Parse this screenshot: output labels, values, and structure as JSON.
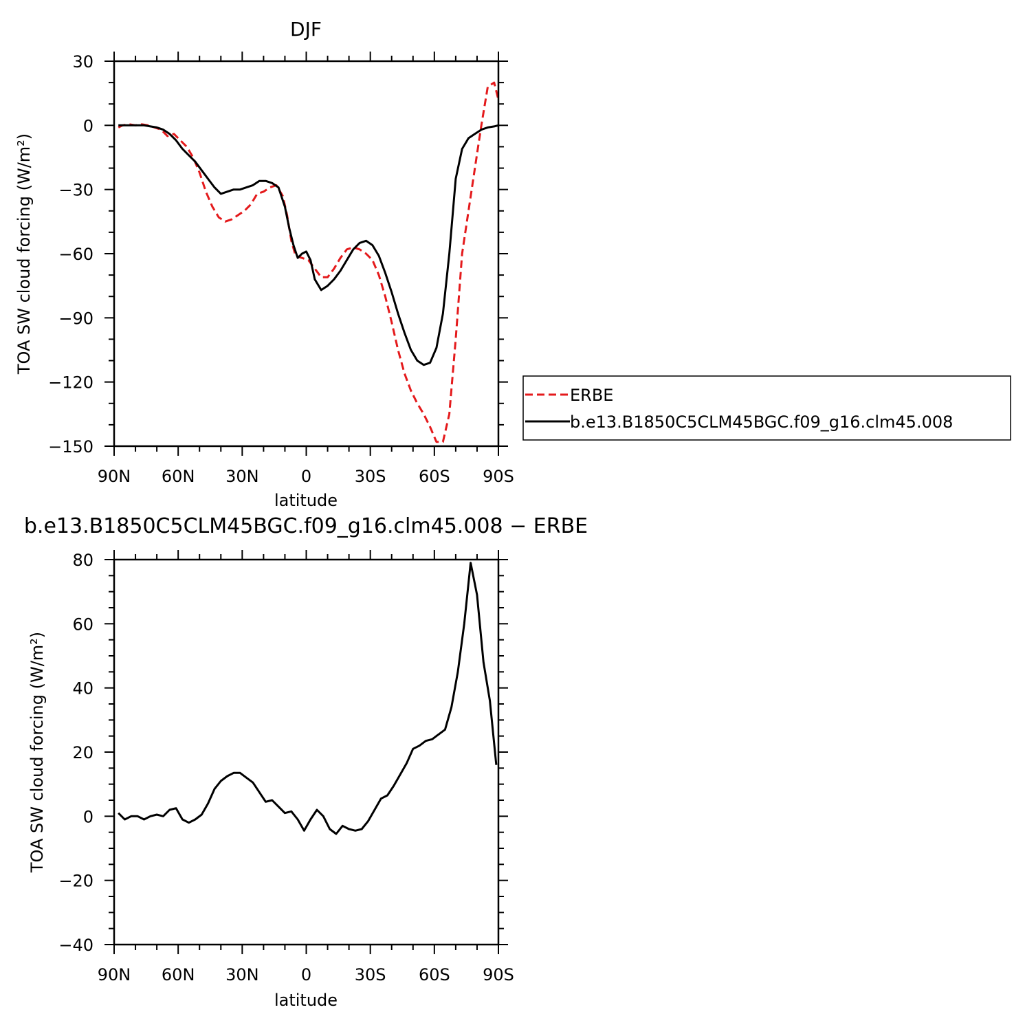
{
  "chart_data": [
    {
      "type": "line",
      "title": "DJF",
      "xlabel": "latitude",
      "ylabel": "TOA SW cloud forcing (W/m²)",
      "xlim": [
        90,
        -90
      ],
      "ylim": [
        -150,
        30
      ],
      "x_ticks": [
        {
          "value": 90,
          "label": "90N"
        },
        {
          "value": 60,
          "label": "60N"
        },
        {
          "value": 30,
          "label": "30N"
        },
        {
          "value": 0,
          "label": "0"
        },
        {
          "value": -30,
          "label": "30S"
        },
        {
          "value": -60,
          "label": "60S"
        },
        {
          "value": -90,
          "label": "90S"
        }
      ],
      "y_ticks": [
        30,
        0,
        -30,
        -60,
        -90,
        -120,
        -150
      ],
      "legend": {
        "position": "right",
        "entries": [
          {
            "name": "ERBE",
            "color": "#e41a1c",
            "dash": "dashed"
          },
          {
            "name": "b.e13.B1850C5CLM45BGC.f09_g16.clm45.008",
            "color": "#000000",
            "dash": "solid"
          }
        ]
      },
      "series": [
        {
          "name": "ERBE",
          "color": "#e41a1c",
          "dash": "dashed",
          "points": [
            [
              88,
              -1
            ],
            [
              86,
              0
            ],
            [
              83,
              0.5
            ],
            [
              80,
              0
            ],
            [
              77,
              0.5
            ],
            [
              74,
              0
            ],
            [
              71,
              -1
            ],
            [
              68,
              -2
            ],
            [
              65,
              -5
            ],
            [
              62,
              -4
            ],
            [
              59,
              -7
            ],
            [
              56,
              -10
            ],
            [
              53,
              -15
            ],
            [
              50,
              -22
            ],
            [
              47,
              -31
            ],
            [
              44,
              -38
            ],
            [
              41,
              -43
            ],
            [
              38,
              -45
            ],
            [
              35,
              -44
            ],
            [
              32,
              -42
            ],
            [
              29,
              -40
            ],
            [
              26,
              -37
            ],
            [
              23,
              -32
            ],
            [
              20,
              -31
            ],
            [
              17,
              -29
            ],
            [
              14,
              -28
            ],
            [
              11,
              -33
            ],
            [
              9,
              -42
            ],
            [
              7,
              -54
            ],
            [
              5,
              -61
            ],
            [
              2,
              -62
            ],
            [
              -1,
              -63
            ],
            [
              -4,
              -67
            ],
            [
              -7,
              -71
            ],
            [
              -10,
              -71
            ],
            [
              -13,
              -67
            ],
            [
              -16,
              -62
            ],
            [
              -19,
              -58
            ],
            [
              -22,
              -57
            ],
            [
              -25,
              -58
            ],
            [
              -28,
              -60
            ],
            [
              -31,
              -63
            ],
            [
              -34,
              -70
            ],
            [
              -37,
              -80
            ],
            [
              -40,
              -92
            ],
            [
              -43,
              -105
            ],
            [
              -46,
              -116
            ],
            [
              -49,
              -124
            ],
            [
              -52,
              -130
            ],
            [
              -55,
              -135
            ],
            [
              -58,
              -141
            ],
            [
              -61,
              -148
            ],
            [
              -64,
              -148
            ],
            [
              -67,
              -135
            ],
            [
              -70,
              -100
            ],
            [
              -73,
              -60
            ],
            [
              -76,
              -40
            ],
            [
              -79,
              -20
            ],
            [
              -82,
              0
            ],
            [
              -85,
              18
            ],
            [
              -88,
              20
            ],
            [
              -90,
              12
            ]
          ]
        },
        {
          "name": "b.e13.B1850C5CLM45BGC.f09_g16.clm45.008",
          "color": "#000000",
          "dash": "solid",
          "points": [
            [
              88,
              0
            ],
            [
              85,
              0
            ],
            [
              82,
              0
            ],
            [
              79,
              0
            ],
            [
              76,
              0
            ],
            [
              73,
              -0.5
            ],
            [
              70,
              -1
            ],
            [
              67,
              -2
            ],
            [
              64,
              -4
            ],
            [
              61,
              -7
            ],
            [
              58,
              -11
            ],
            [
              55,
              -14
            ],
            [
              52,
              -17
            ],
            [
              49,
              -21
            ],
            [
              46,
              -25
            ],
            [
              43,
              -29
            ],
            [
              40,
              -32
            ],
            [
              37,
              -31
            ],
            [
              34,
              -30
            ],
            [
              31,
              -30
            ],
            [
              28,
              -29
            ],
            [
              25,
              -28
            ],
            [
              22,
              -26
            ],
            [
              19,
              -26
            ],
            [
              16,
              -27
            ],
            [
              13,
              -29
            ],
            [
              10,
              -38
            ],
            [
              8,
              -48
            ],
            [
              6,
              -56
            ],
            [
              4,
              -62
            ],
            [
              2,
              -60
            ],
            [
              0,
              -59
            ],
            [
              -2,
              -63
            ],
            [
              -4,
              -72
            ],
            [
              -7,
              -77
            ],
            [
              -10,
              -75
            ],
            [
              -13,
              -72
            ],
            [
              -16,
              -68
            ],
            [
              -19,
              -63
            ],
            [
              -22,
              -58
            ],
            [
              -25,
              -55
            ],
            [
              -28,
              -54
            ],
            [
              -31,
              -56
            ],
            [
              -34,
              -61
            ],
            [
              -37,
              -69
            ],
            [
              -40,
              -78
            ],
            [
              -43,
              -88
            ],
            [
              -46,
              -97
            ],
            [
              -49,
              -105
            ],
            [
              -52,
              -110
            ],
            [
              -55,
              -112
            ],
            [
              -58,
              -111
            ],
            [
              -61,
              -104
            ],
            [
              -64,
              -88
            ],
            [
              -67,
              -60
            ],
            [
              -70,
              -25
            ],
            [
              -73,
              -11
            ],
            [
              -76,
              -6
            ],
            [
              -79,
              -4
            ],
            [
              -82,
              -2
            ],
            [
              -85,
              -1
            ],
            [
              -88,
              -0.5
            ],
            [
              -90,
              0
            ]
          ]
        }
      ]
    },
    {
      "type": "line",
      "title": "b.e13.B1850C5CLM45BGC.f09_g16.clm45.008 − ERBE",
      "xlabel": "latitude",
      "ylabel": "TOA SW cloud forcing (W/m²)",
      "xlim": [
        90,
        -90
      ],
      "ylim": [
        -40,
        80
      ],
      "x_ticks": [
        {
          "value": 90,
          "label": "90N"
        },
        {
          "value": 60,
          "label": "60N"
        },
        {
          "value": 30,
          "label": "30N"
        },
        {
          "value": 0,
          "label": "0"
        },
        {
          "value": -30,
          "label": "30S"
        },
        {
          "value": -60,
          "label": "60S"
        },
        {
          "value": -90,
          "label": "90S"
        }
      ],
      "y_ticks": [
        80,
        60,
        40,
        20,
        0,
        -20,
        -40
      ],
      "series": [
        {
          "color": "#000000",
          "dash": "solid",
          "points": [
            [
              88,
              1
            ],
            [
              85,
              -1
            ],
            [
              82,
              0
            ],
            [
              79,
              0
            ],
            [
              76,
              -1
            ],
            [
              73,
              0
            ],
            [
              70,
              0.5
            ],
            [
              67,
              0
            ],
            [
              64,
              2
            ],
            [
              61,
              2.5
            ],
            [
              58,
              -1
            ],
            [
              55,
              -2
            ],
            [
              52,
              -1
            ],
            [
              49,
              0.5
            ],
            [
              46,
              4
            ],
            [
              43,
              8.5
            ],
            [
              40,
              11
            ],
            [
              37,
              12.5
            ],
            [
              34,
              13.5
            ],
            [
              31,
              13.5
            ],
            [
              28,
              12
            ],
            [
              25,
              10.5
            ],
            [
              22,
              7.5
            ],
            [
              19,
              4.5
            ],
            [
              16,
              5
            ],
            [
              13,
              3
            ],
            [
              10,
              1
            ],
            [
              7,
              1.5
            ],
            [
              4,
              -1
            ],
            [
              1,
              -4.5
            ],
            [
              -2,
              -1
            ],
            [
              -5,
              2
            ],
            [
              -8,
              0
            ],
            [
              -11,
              -4
            ],
            [
              -14,
              -5.5
            ],
            [
              -17,
              -3
            ],
            [
              -20,
              -4
            ],
            [
              -23,
              -4.5
            ],
            [
              -26,
              -4
            ],
            [
              -29,
              -1.5
            ],
            [
              -32,
              2
            ],
            [
              -35,
              5.5
            ],
            [
              -38,
              6.5
            ],
            [
              -41,
              9.5
            ],
            [
              -44,
              13
            ],
            [
              -47,
              16.5
            ],
            [
              -50,
              21
            ],
            [
              -53,
              22
            ],
            [
              -56,
              23.5
            ],
            [
              -59,
              24
            ],
            [
              -62,
              25.5
            ],
            [
              -65,
              27
            ],
            [
              -68,
              34
            ],
            [
              -71,
              45
            ],
            [
              -74,
              60
            ],
            [
              -77,
              79
            ],
            [
              -80,
              69
            ],
            [
              -83,
              48
            ],
            [
              -86,
              36
            ],
            [
              -89,
              16
            ]
          ]
        }
      ]
    }
  ]
}
